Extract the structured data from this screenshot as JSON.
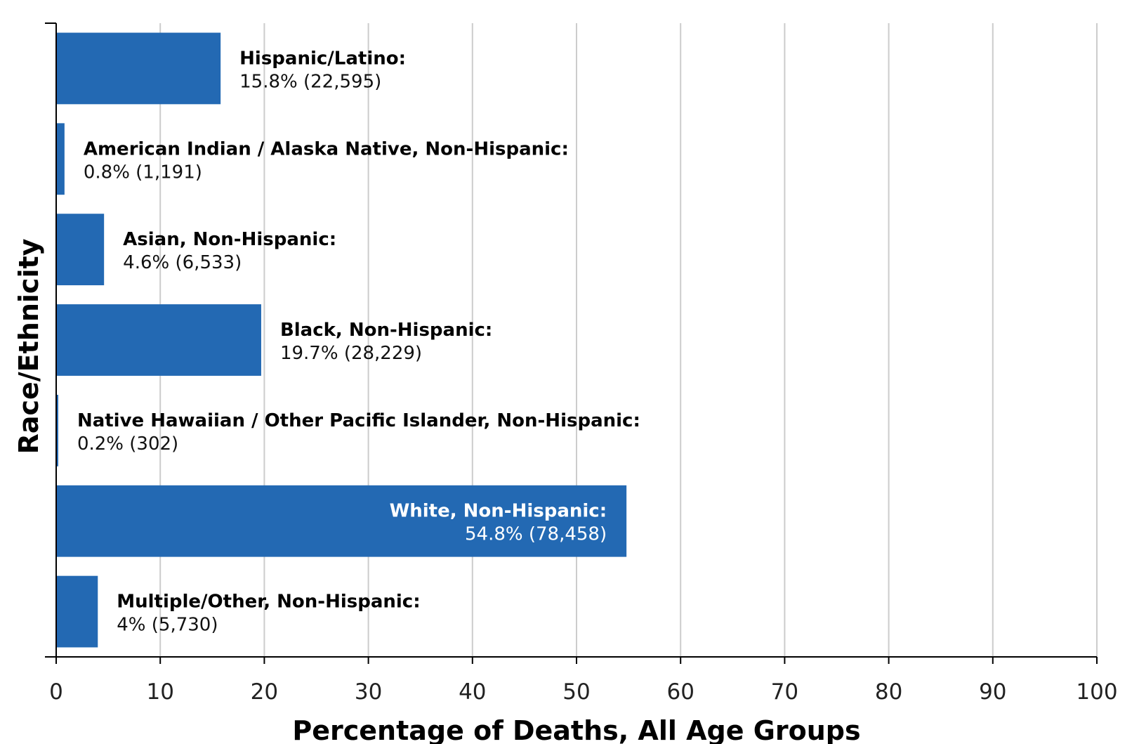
{
  "chart_data": {
    "type": "bar",
    "orientation": "horizontal",
    "xlabel": "Percentage of Deaths, All Age Groups",
    "ylabel": "Race/Ethnicity",
    "xlim": [
      0,
      100
    ],
    "xticks": [
      "0",
      "10",
      "20",
      "30",
      "40",
      "50",
      "60",
      "70",
      "80",
      "90",
      "100"
    ],
    "grid": "vertical",
    "bar_color": "#2369b3",
    "categories": [
      "Hispanic/Latino:",
      "American Indian / Alaska Native, Non-Hispanic:",
      "Asian, Non-Hispanic:",
      "Black, Non-Hispanic:",
      "Native Hawaiian / Other Pacific Islander, Non-Hispanic:",
      "White, Non-Hispanic:",
      "Multiple/Other, Non-Hispanic:"
    ],
    "values": [
      15.8,
      0.8,
      4.6,
      19.7,
      0.2,
      54.8,
      4.0
    ],
    "value_labels": [
      "15.8% (22,595)",
      "0.8% (1,191)",
      "4.6% (6,533)",
      "19.7% (28,229)",
      "0.2% (302)",
      "54.8% (78,458)",
      "4% (5,730)"
    ]
  }
}
